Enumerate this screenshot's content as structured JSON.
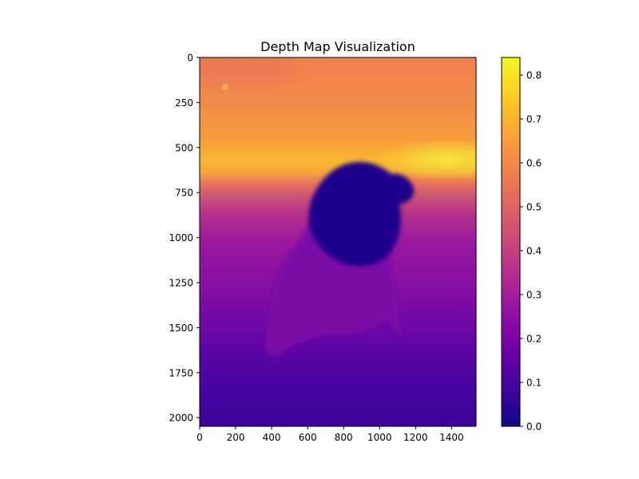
{
  "chart_data": {
    "type": "heatmap",
    "title": "Depth Map Visualization",
    "xlabel": "",
    "ylabel": "",
    "xlim": [
      0,
      1536
    ],
    "ylim": [
      2048,
      0
    ],
    "x_ticks": [
      "0",
      "200",
      "400",
      "600",
      "800",
      "1000",
      "1200",
      "1400"
    ],
    "y_ticks": [
      "0",
      "250",
      "500",
      "750",
      "1000",
      "1250",
      "1500",
      "1750",
      "2000"
    ],
    "colormap": "plasma",
    "colorbar": {
      "range": [
        0.0,
        0.84
      ],
      "ticks": [
        "0.0",
        "0.1",
        "0.2",
        "0.3",
        "0.4",
        "0.5",
        "0.6",
        "0.7",
        "0.8"
      ]
    },
    "grid": false,
    "depth_regions": [
      {
        "region": "upper background",
        "approx_value": 0.68
      },
      {
        "region": "bright horizon band near y≈550",
        "approx_value": 0.8
      },
      {
        "region": "lower foreground",
        "approx_value": 0.1
      },
      {
        "region": "foreground subject (head)",
        "approx_value": 0.01
      },
      {
        "region": "foreground subject (body)",
        "approx_value": 0.15
      }
    ]
  }
}
